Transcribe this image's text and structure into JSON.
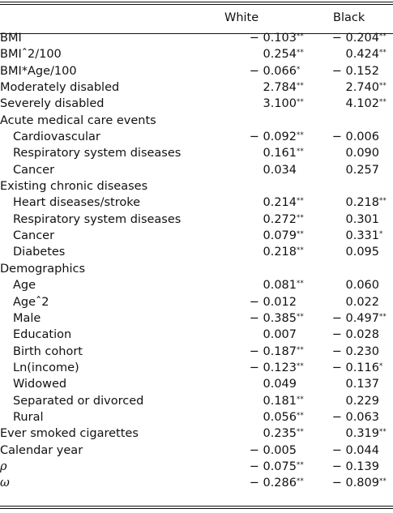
{
  "table": {
    "columns": [
      "White",
      "Black"
    ],
    "rows": [
      {
        "label": "BMI",
        "indent": false,
        "white": "− 0.103",
        "white_sig": "**",
        "black": "− 0.204",
        "black_sig": "**"
      },
      {
        "label": "BMIˆ2/100",
        "indent": false,
        "white": "0.254",
        "white_sig": "**",
        "black": "0.424",
        "black_sig": "**"
      },
      {
        "label": "BMI*Age/100",
        "indent": false,
        "white": "− 0.066",
        "white_sig": "*",
        "black": "− 0.152",
        "black_sig": ""
      },
      {
        "label": "Moderately disabled",
        "indent": false,
        "white": "2.784",
        "white_sig": "**",
        "black": "2.740",
        "black_sig": "**"
      },
      {
        "label": "Severely disabled",
        "indent": false,
        "white": "3.100",
        "white_sig": "**",
        "black": "4.102",
        "black_sig": "**"
      },
      {
        "label": "Acute medical care events",
        "indent": false,
        "white": "",
        "white_sig": "",
        "black": "",
        "black_sig": ""
      },
      {
        "label": "Cardiovascular",
        "indent": true,
        "white": "− 0.092",
        "white_sig": "**",
        "black": "− 0.006",
        "black_sig": ""
      },
      {
        "label": "Respiratory system diseases",
        "indent": true,
        "white": "0.161",
        "white_sig": "**",
        "black": "0.090",
        "black_sig": ""
      },
      {
        "label": "Cancer",
        "indent": true,
        "white": "0.034",
        "white_sig": "",
        "black": "0.257",
        "black_sig": ""
      },
      {
        "label": "Existing chronic diseases",
        "indent": false,
        "white": "",
        "white_sig": "",
        "black": "",
        "black_sig": ""
      },
      {
        "label": "Heart diseases/stroke",
        "indent": true,
        "white": "0.214",
        "white_sig": "**",
        "black": "0.218",
        "black_sig": "**"
      },
      {
        "label": "Respiratory system diseases",
        "indent": true,
        "white": "0.272",
        "white_sig": "**",
        "black": "0.301",
        "black_sig": ""
      },
      {
        "label": "Cancer",
        "indent": true,
        "white": "0.079",
        "white_sig": "**",
        "black": "0.331",
        "black_sig": "*"
      },
      {
        "label": "Diabetes",
        "indent": true,
        "white": "0.218",
        "white_sig": "**",
        "black": "0.095",
        "black_sig": ""
      },
      {
        "label": "Demographics",
        "indent": false,
        "white": "",
        "white_sig": "",
        "black": "",
        "black_sig": ""
      },
      {
        "label": "Age",
        "indent": true,
        "white": "0.081",
        "white_sig": "**",
        "black": "0.060",
        "black_sig": ""
      },
      {
        "label": "Ageˆ2",
        "indent": true,
        "white": "− 0.012",
        "white_sig": "",
        "black": "0.022",
        "black_sig": ""
      },
      {
        "label": "Male",
        "indent": true,
        "white": "− 0.385",
        "white_sig": "**",
        "black": "− 0.497",
        "black_sig": "**"
      },
      {
        "label": "Education",
        "indent": true,
        "white": "0.007",
        "white_sig": "",
        "black": "− 0.028",
        "black_sig": ""
      },
      {
        "label": "Birth cohort",
        "indent": true,
        "white": "− 0.187",
        "white_sig": "**",
        "black": "− 0.230",
        "black_sig": ""
      },
      {
        "label": "Ln(income)",
        "indent": true,
        "white": "− 0.123",
        "white_sig": "**",
        "black": "− 0.116",
        "black_sig": "*"
      },
      {
        "label": "Widowed",
        "indent": true,
        "white": "0.049",
        "white_sig": "",
        "black": "0.137",
        "black_sig": ""
      },
      {
        "label": "Separated or divorced",
        "indent": true,
        "white": "0.181",
        "white_sig": "**",
        "black": "0.229",
        "black_sig": ""
      },
      {
        "label": "Rural",
        "indent": true,
        "white": "0.056",
        "white_sig": "**",
        "black": "− 0.063",
        "black_sig": ""
      },
      {
        "label": "Ever smoked cigarettes",
        "indent": false,
        "white": "0.235",
        "white_sig": "**",
        "black": "0.319",
        "black_sig": "**"
      },
      {
        "label": "Calendar year",
        "indent": false,
        "white": "− 0.005",
        "white_sig": "",
        "black": "− 0.044",
        "black_sig": ""
      },
      {
        "label": "ρ",
        "indent": false,
        "greek": true,
        "white": "− 0.075",
        "white_sig": "**",
        "black": "− 0.139",
        "black_sig": ""
      },
      {
        "label": "ω",
        "indent": false,
        "greek": true,
        "white": "− 0.286",
        "white_sig": "**",
        "black": "− 0.809",
        "black_sig": "**"
      }
    ]
  }
}
